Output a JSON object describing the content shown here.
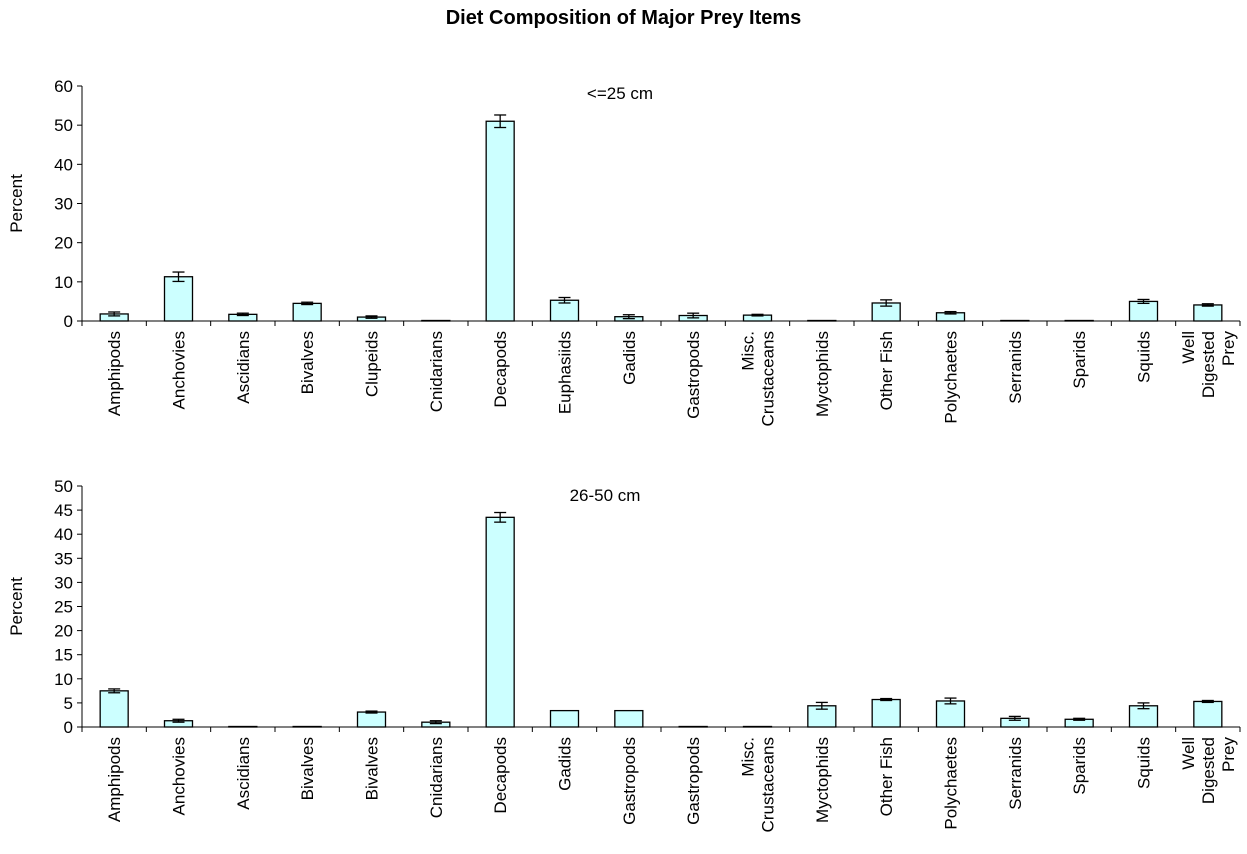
{
  "title": "Diet Composition of Major Prey Items",
  "colors": {
    "bar_fill": "#ccffff",
    "bar_stroke": "#000000",
    "axis": "#000000"
  },
  "chart_data": [
    {
      "type": "bar",
      "annotation": "<=25 cm",
      "ylabel": "Percent",
      "ylim": [
        0,
        60
      ],
      "yticks": [
        0,
        10,
        20,
        30,
        40,
        50,
        60
      ],
      "grid": false,
      "categories": [
        "Amphipods",
        "Anchovies",
        "Ascidians",
        "Bivalves",
        "Clupeids",
        "Cnidarians",
        "Decapods",
        "Euphasiids",
        "Gadids",
        "Gastropods",
        "Misc.\nCrustaceans",
        "Myctophids",
        "Other Fish",
        "Polychaetes",
        "Serranids",
        "Sparids",
        "Squids",
        "Well\nDigested\nPrey"
      ],
      "values": [
        1.8,
        11.3,
        1.7,
        4.5,
        1.0,
        0.0,
        51.0,
        5.3,
        1.1,
        1.4,
        1.5,
        0.0,
        4.6,
        2.1,
        0.0,
        0.0,
        5.0,
        4.1
      ],
      "errors": [
        0.5,
        1.2,
        0.3,
        0.3,
        0.3,
        0.0,
        1.6,
        0.7,
        0.5,
        0.6,
        0.2,
        0.0,
        0.8,
        0.3,
        0.0,
        0.0,
        0.5,
        0.3
      ]
    },
    {
      "type": "bar",
      "annotation": "26-50 cm",
      "ylabel": "Percent",
      "ylim": [
        0,
        50
      ],
      "yticks": [
        0,
        5,
        10,
        15,
        20,
        25,
        30,
        35,
        40,
        45,
        50
      ],
      "grid": false,
      "categories": [
        "Amphipods",
        "Anchovies",
        "Ascidians",
        "Bivalves",
        "Bivalves",
        "Cnidarians",
        "Decapods",
        "Gadids",
        "Gastropods",
        "Gastropods",
        "Misc.\nCrustaceans",
        "Myctophids",
        "Other Fish",
        "Polychaetes",
        "Serranids",
        "Sparids",
        "Squids",
        "Well\nDigested\nPrey"
      ],
      "values": [
        7.5,
        1.3,
        0.0,
        0.0,
        3.1,
        1.0,
        43.5,
        3.4,
        3.4,
        0.0,
        0.0,
        4.4,
        5.7,
        5.4,
        1.8,
        1.6,
        4.4,
        5.3
      ],
      "errors": [
        0.4,
        0.3,
        0.0,
        0.0,
        0.2,
        0.3,
        1.0,
        0.0,
        0.0,
        0.0,
        0.0,
        0.7,
        0.2,
        0.6,
        0.4,
        0.2,
        0.6,
        0.2
      ]
    }
  ]
}
